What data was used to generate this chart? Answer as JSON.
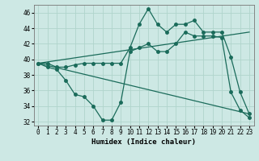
{
  "title": "",
  "xlabel": "Humidex (Indice chaleur)",
  "bg_color": "#cde8e4",
  "grid_color": "#b0d4cc",
  "line_color": "#1a6b5a",
  "ylim": [
    31.5,
    47.0
  ],
  "xlim": [
    -0.5,
    23.5
  ],
  "yticks": [
    32,
    34,
    36,
    38,
    40,
    42,
    44,
    46
  ],
  "xticks": [
    0,
    1,
    2,
    3,
    4,
    5,
    6,
    7,
    8,
    9,
    10,
    11,
    12,
    13,
    14,
    15,
    16,
    17,
    18,
    19,
    20,
    21,
    22,
    23
  ],
  "series1_x": [
    0,
    1,
    2,
    3,
    4,
    5,
    6,
    7,
    8,
    9,
    10,
    11,
    12,
    13,
    14,
    15,
    16,
    17,
    18,
    19,
    20,
    21,
    22,
    23
  ],
  "series1_y": [
    39.5,
    39.5,
    39.0,
    39.0,
    39.3,
    39.5,
    39.5,
    39.5,
    39.5,
    39.5,
    41.5,
    44.5,
    46.5,
    44.5,
    43.5,
    44.5,
    44.5,
    45.0,
    43.5,
    43.5,
    43.5,
    40.3,
    35.8,
    33.0
  ],
  "series2_x": [
    0,
    1,
    2,
    3,
    4,
    5,
    6,
    7,
    8,
    9,
    10,
    11,
    12,
    13,
    14,
    15,
    16,
    17,
    18,
    19,
    20,
    21,
    22,
    23
  ],
  "series2_y": [
    39.5,
    39.0,
    38.7,
    37.3,
    35.5,
    35.2,
    34.0,
    32.2,
    32.2,
    34.5,
    41.0,
    41.5,
    42.0,
    41.0,
    41.0,
    42.0,
    43.5,
    43.0,
    43.0,
    43.0,
    42.8,
    35.8,
    33.5,
    32.5
  ],
  "series3_x": [
    0,
    23
  ],
  "series3_y": [
    39.5,
    43.5
  ],
  "series4_x": [
    0,
    23
  ],
  "series4_y": [
    39.5,
    33.0
  ]
}
